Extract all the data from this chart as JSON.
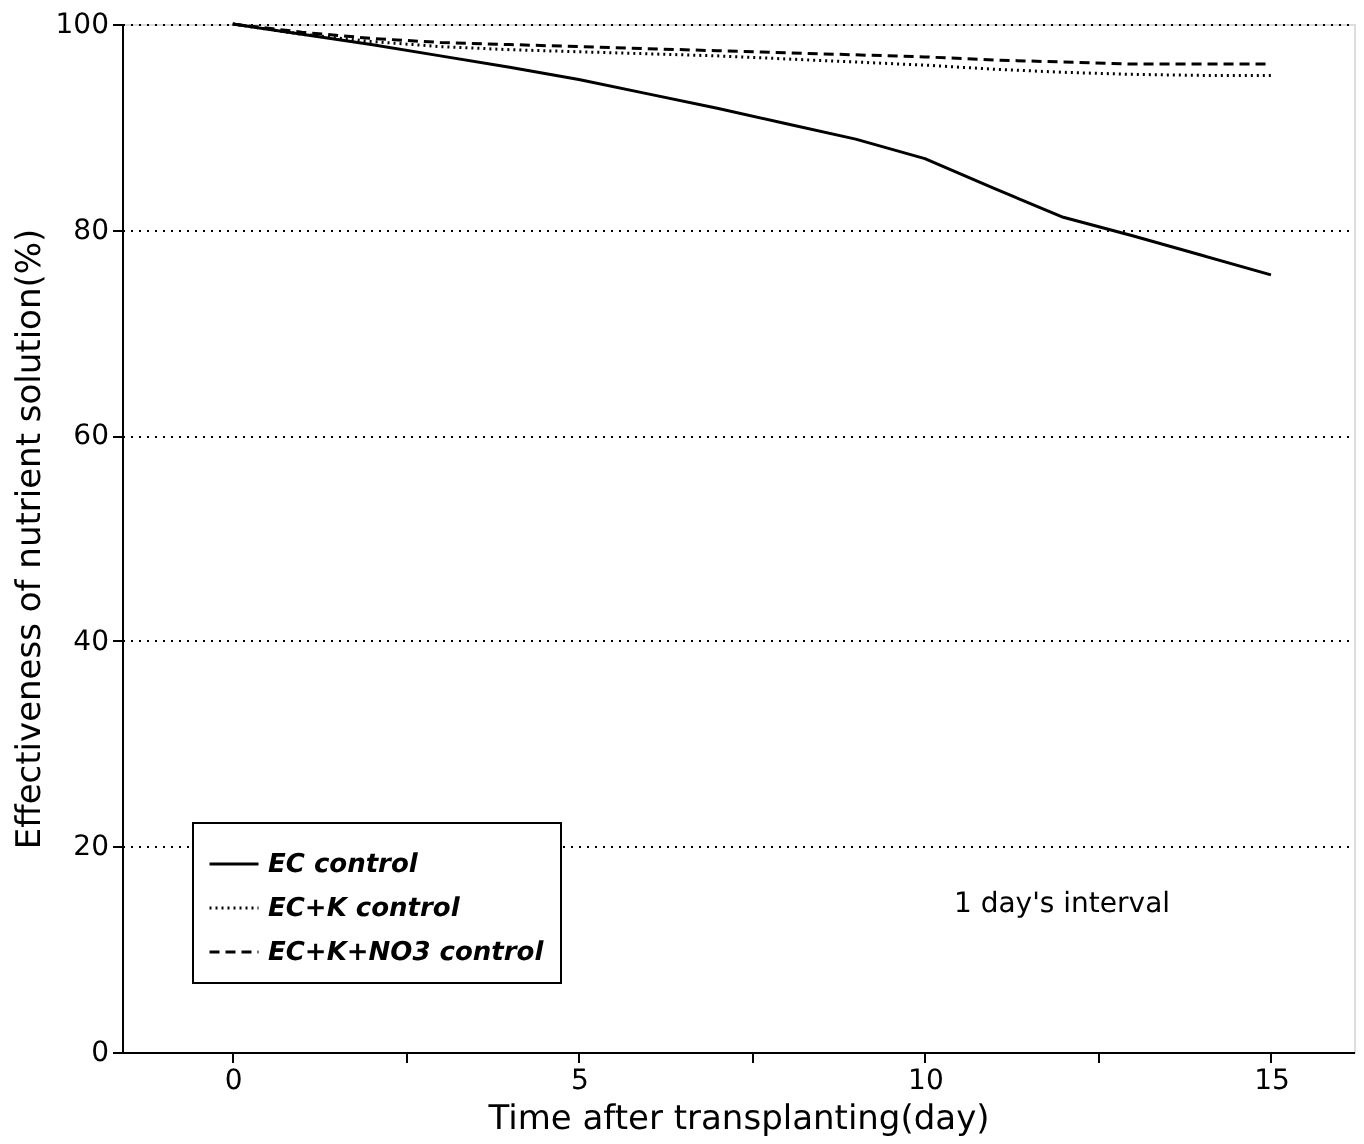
{
  "chart_data": {
    "type": "line",
    "xlabel": "Time after transplanting(day)",
    "ylabel": "Effectiveness of nutrient solution(%)",
    "x": [
      0,
      1,
      2,
      3,
      4,
      5,
      6,
      7,
      8,
      9,
      10,
      11,
      12,
      13,
      14,
      15
    ],
    "series": [
      {
        "name": "EC control",
        "color": "#000000",
        "line_style": "solid",
        "values": [
          100,
          99.0,
          98.0,
          96.9,
          95.8,
          94.6,
          93.2,
          91.8,
          90.3,
          88.8,
          86.9,
          84.0,
          81.2,
          79.4,
          77.5,
          75.6
        ]
      },
      {
        "name": "EC+K control",
        "color": "#000000",
        "line_style": "dotted",
        "values": [
          100,
          99.0,
          98.3,
          97.8,
          97.5,
          97.3,
          97.1,
          96.9,
          96.6,
          96.3,
          96.0,
          95.6,
          95.3,
          95.1,
          95.0,
          95.0
        ]
      },
      {
        "name": "EC+K+NO3 control",
        "color": "#000000",
        "line_style": "dashed",
        "values": [
          100,
          99.2,
          98.6,
          98.2,
          98.0,
          97.8,
          97.6,
          97.4,
          97.2,
          97.0,
          96.8,
          96.5,
          96.3,
          96.1,
          96.1,
          96.1
        ]
      }
    ],
    "xlim": [
      -1.6,
      16.2
    ],
    "xticks": [
      0,
      {
        "value": 2.5,
        "label": null
      },
      5,
      {
        "value": 7.5,
        "label": null
      },
      10,
      {
        "value": 12.5,
        "label": null
      },
      15
    ],
    "ylim": [
      0,
      100
    ],
    "yticks": [
      0,
      20,
      40,
      60,
      80,
      100
    ],
    "grid": "y",
    "legend": "bottom left",
    "marker": "none",
    "annotations": [
      "1 day's interval"
    ]
  }
}
